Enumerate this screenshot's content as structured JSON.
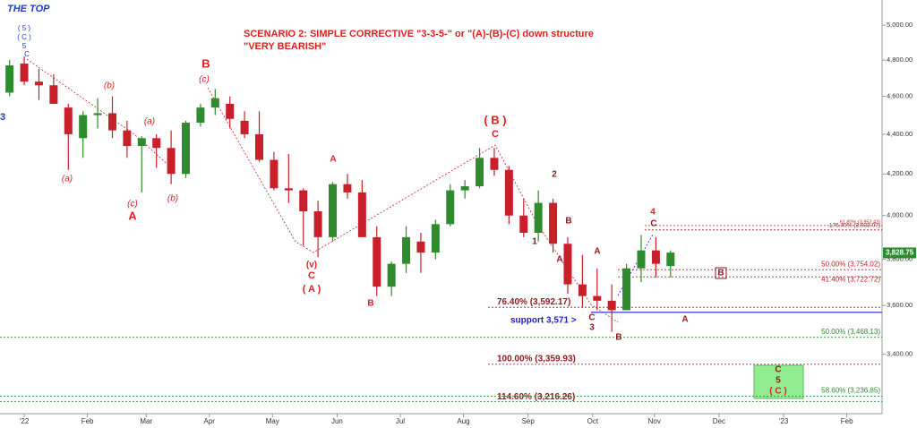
{
  "chart_data": {
    "type": "candlestick",
    "title": "THE TOP",
    "subtitle": [
      "SCENARIO 2: SIMPLE CORRECTIVE \"3-3-5-\" or \"(A)-(B)-(C) down structure",
      "\"VERY BEARISH\""
    ],
    "log_scale": true,
    "up_color": "#2e8b2e",
    "down_color": "#c8202a",
    "x": [
      -1,
      0,
      1,
      2,
      3,
      4,
      5,
      6,
      7,
      8,
      9,
      10,
      11,
      12,
      13,
      14,
      15,
      16,
      17,
      18,
      19,
      20,
      21,
      22,
      23,
      24,
      25,
      26,
      27,
      28,
      29,
      30,
      31,
      32,
      33,
      34,
      35,
      36,
      37,
      38,
      39,
      40,
      41,
      42,
      43,
      44
    ],
    "open": [
      4620,
      4780,
      4680,
      4660,
      4540,
      4380,
      4500,
      4510,
      4420,
      4340,
      4380,
      4330,
      4200,
      4460,
      4540,
      4560,
      4470,
      4400,
      4270,
      4130,
      4120,
      4020,
      3900,
      4150,
      4110,
      3900,
      3680,
      3780,
      3880,
      3830,
      3960,
      4120,
      4140,
      4280,
      4220,
      4000,
      3920,
      4060,
      3870,
      3690,
      3640,
      3620,
      3580,
      3760,
      3840,
      3770
    ],
    "high": [
      4800,
      4820,
      4750,
      4720,
      4560,
      4520,
      4590,
      4600,
      4470,
      4390,
      4400,
      4420,
      4470,
      4560,
      4640,
      4600,
      4520,
      4520,
      4310,
      4300,
      4130,
      4070,
      4160,
      4200,
      4170,
      3950,
      3790,
      3950,
      3920,
      3980,
      4150,
      4170,
      4330,
      4330,
      4240,
      4080,
      4120,
      4080,
      3900,
      3820,
      3760,
      3690,
      3780,
      3910,
      3900,
      3840
    ],
    "low": [
      4600,
      4660,
      4580,
      4560,
      4220,
      4280,
      4430,
      4380,
      4280,
      4110,
      4230,
      4150,
      4180,
      4440,
      4500,
      4430,
      4380,
      4260,
      4120,
      4060,
      3860,
      3810,
      3880,
      4080,
      3900,
      3640,
      3640,
      3740,
      3740,
      3800,
      3950,
      4080,
      4130,
      4190,
      3960,
      3900,
      3880,
      3830,
      3650,
      3590,
      3580,
      3490,
      3580,
      3700,
      3720,
      3720
    ],
    "close": [
      4770,
      4680,
      4660,
      4560,
      4400,
      4500,
      4510,
      4420,
      4340,
      4380,
      4330,
      4200,
      4460,
      4540,
      4590,
      4480,
      4400,
      4270,
      4130,
      4120,
      4020,
      3900,
      4150,
      4110,
      3900,
      3680,
      3780,
      3900,
      3830,
      3960,
      4120,
      4140,
      4280,
      4220,
      4000,
      3920,
      4060,
      3870,
      3690,
      3640,
      3620,
      3580,
      3760,
      3840,
      3780,
      3830
    ],
    "xlim": [
      -1.65,
      58.4
    ],
    "xticks": [
      {
        "value": 0,
        "label": "'22"
      },
      {
        "value": 4.3,
        "label": "Feb"
      },
      {
        "value": 8.3,
        "label": "Mar"
      },
      {
        "value": 12.6,
        "label": "Apr"
      },
      {
        "value": 16.9,
        "label": "May"
      },
      {
        "value": 21.3,
        "label": "Jun"
      },
      {
        "value": 25.6,
        "label": "Jul"
      },
      {
        "value": 29.9,
        "label": "Aug"
      },
      {
        "value": 34.3,
        "label": "Sep"
      },
      {
        "value": 38.7,
        "label": "Oct"
      },
      {
        "value": 42.9,
        "label": "Nov"
      },
      {
        "value": 47.3,
        "label": "Dec"
      },
      {
        "value": 51.7,
        "label": "'23"
      },
      {
        "value": 56,
        "label": "Feb"
      }
    ],
    "ylim": [
      3171,
      5150
    ],
    "yticks": [
      {
        "value": 3400,
        "label": "3,400.00"
      },
      {
        "value": 3600,
        "label": "3,600.00"
      },
      {
        "value": 3800,
        "label": "3,800.00"
      },
      {
        "value": 4000,
        "label": "4,000.00"
      },
      {
        "value": 4200,
        "label": "4,200.00"
      },
      {
        "value": 4400,
        "label": "4,400.00"
      },
      {
        "value": 4600,
        "label": "4,600.00"
      },
      {
        "value": 4800,
        "label": "4,800.00"
      },
      {
        "value": 5000,
        "label": "5,000.00"
      }
    ],
    "last_price": {
      "value": 3828.75,
      "label": "3,828.75"
    },
    "levels": [
      {
        "label": "76.40% (3,592.17)",
        "value": 3592.17,
        "color": "#8b1a1a"
      },
      {
        "label": "100.00% (3,359.93)",
        "value": 3359.93,
        "color": "#8b1a1a"
      },
      {
        "label": "114.60% (3,216.26)",
        "value": 3216.26,
        "color": "#8b1a1a"
      },
      {
        "label": "50.00% (3,754.02)",
        "value": 3754.02,
        "color": "#c8202a"
      },
      {
        "label": "41.40% (3,722.72)",
        "value": 3722.72,
        "color": "#c8202a"
      },
      {
        "label": "50.00% (3,468.13)",
        "value": 3468.13,
        "color": "#2e8b2e"
      },
      {
        "label": "58.60% (3,236.85)",
        "value": 3236.85,
        "color": "#2e8b2e"
      },
      {
        "label": "176.40% (3,933.07)",
        "value": 3933.07,
        "color": "#8b1a1a"
      },
      {
        "label": "61.80% (3,953.43)",
        "value": 3953.43,
        "color": "#c8202a"
      },
      {
        "label": "support 3,571 >",
        "value": 3571,
        "color": "#2020c8"
      }
    ],
    "annotations": [
      "( 5 )",
      "( C )",
      "5",
      "C",
      "3",
      "(b)",
      "(a)",
      "(a)",
      "(c)",
      "A",
      "(b)",
      "B",
      "(c)",
      "A",
      "(v)",
      "C",
      "( A )",
      "B",
      "( B )",
      "C",
      "2",
      "B",
      "1",
      "A",
      "A",
      "C",
      "3",
      "B",
      "4",
      "C",
      "B",
      "A",
      "C",
      "5",
      "( C )"
    ]
  }
}
